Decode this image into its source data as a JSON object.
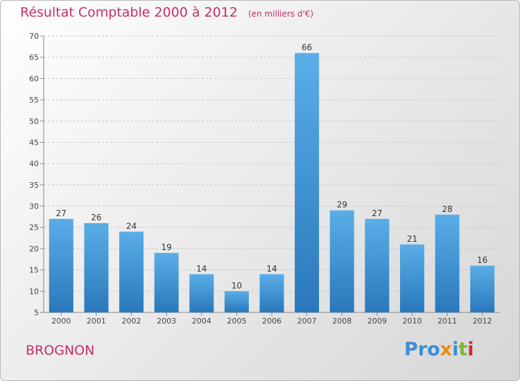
{
  "chart_data": {
    "type": "bar",
    "title": "Résultat Comptable 2000 à 2012",
    "unit_label": "(en milliers d'€)",
    "categories": [
      "2000",
      "2001",
      "2002",
      "2003",
      "2004",
      "2005",
      "2006",
      "2007",
      "2008",
      "2009",
      "2010",
      "2011",
      "2012"
    ],
    "values": [
      27,
      26,
      24,
      19,
      14,
      10,
      14,
      66,
      29,
      27,
      21,
      28,
      16
    ],
    "ylim": [
      5,
      70
    ],
    "yticks": [
      5,
      10,
      15,
      20,
      25,
      30,
      35,
      40,
      45,
      50,
      55,
      60,
      65,
      70
    ],
    "grid": true,
    "xlabel": "",
    "ylabel": "",
    "bar_color": "#3f96d8"
  },
  "footer": {
    "city": "BROGNON",
    "logo_parts": [
      "Pro",
      "x",
      "i",
      "t",
      "i"
    ],
    "logo_text": "Proxiti"
  }
}
